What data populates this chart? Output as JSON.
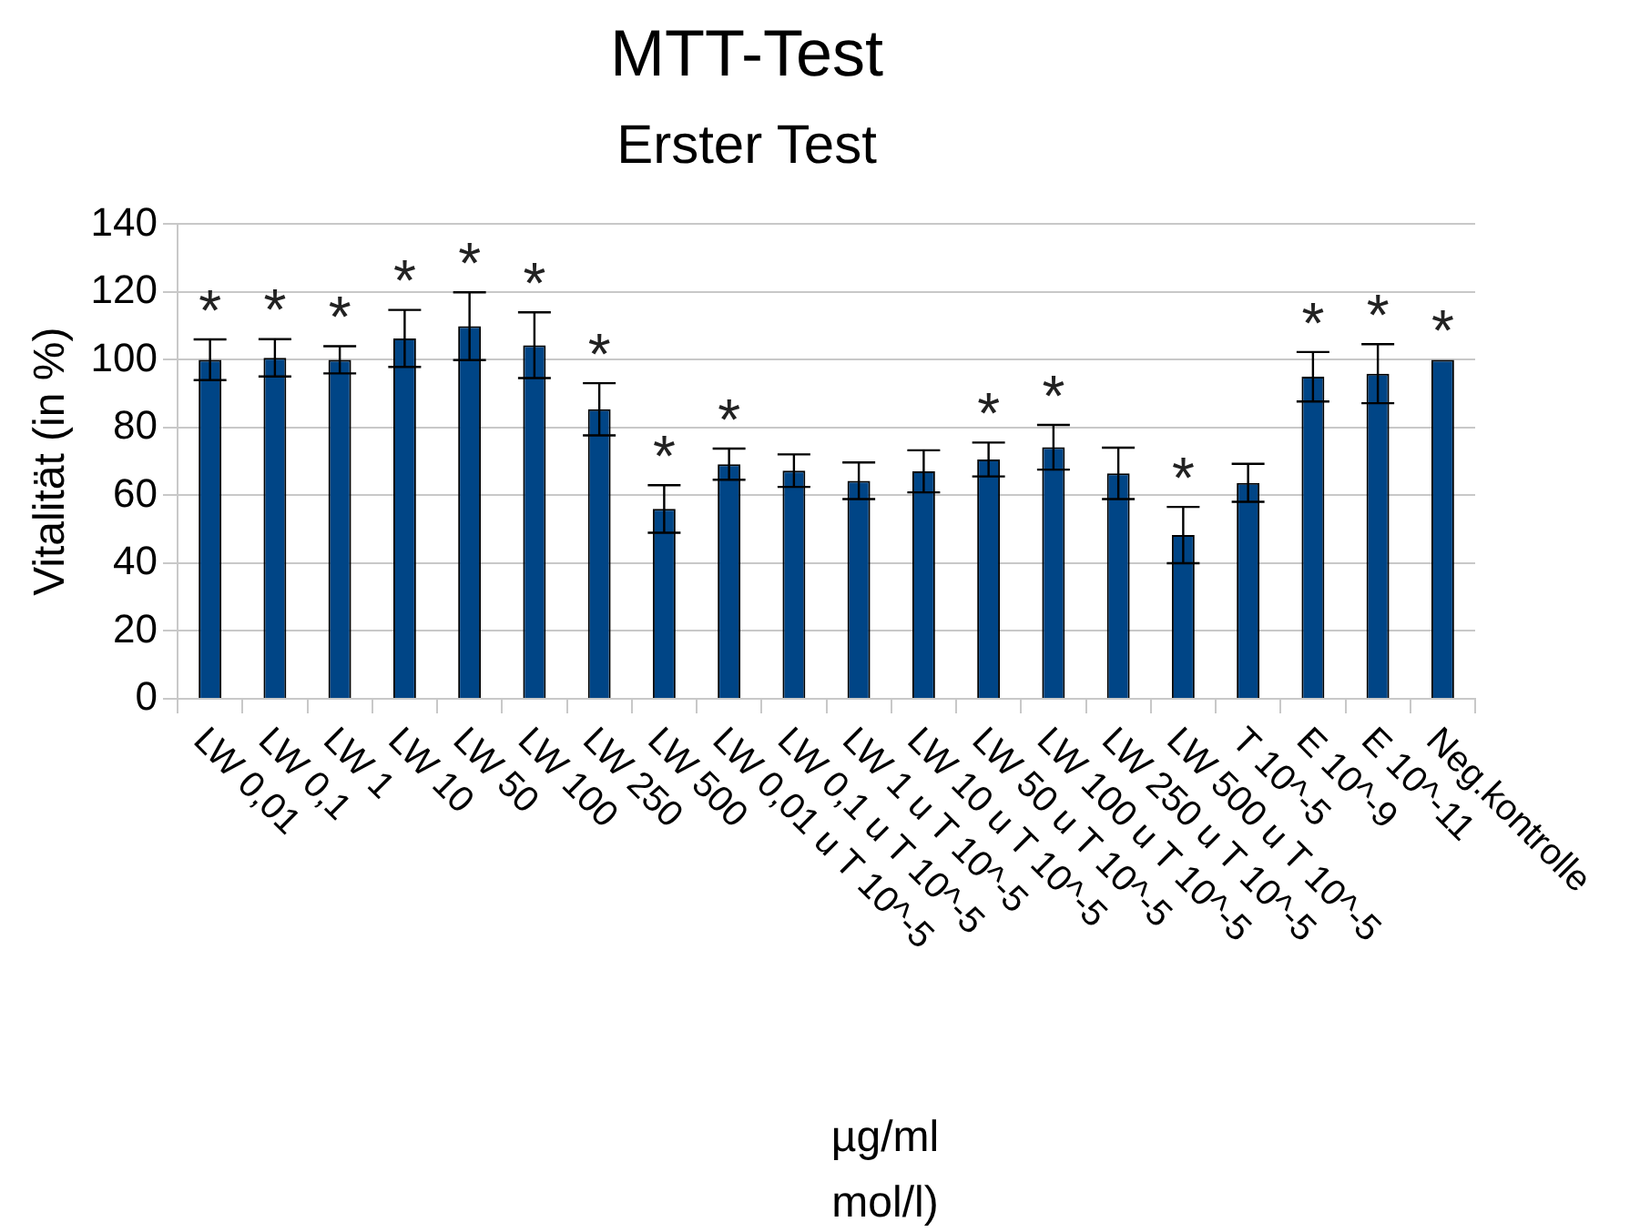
{
  "chart_data": {
    "type": "bar",
    "title": "MTT-Test",
    "subtitle": "Erster Test",
    "ylabel": "Vitalität (in %)",
    "xlabel": "µg/ml\nmol/l)",
    "categories": [
      "LW 0,01",
      "LW 0,1",
      "LW 1",
      "LW 10",
      "LW 50",
      "LW 100",
      "LW 250",
      "LW 500",
      "LW 0,01 u T 10^-5",
      "LW 0,1 u T 10^-5",
      "LW 1 u T 10^-5",
      "LW 10 u T 10^-5",
      "LW 50 u T 10^-5",
      "LW 100 u T 10^-5",
      "LW 250 u T 10^-5",
      "LW 500 u T 10^-5",
      "T 10^-5",
      "E 10^-9",
      "E 10^-11",
      "Neg.kontrolle"
    ],
    "values": [
      100,
      100.6,
      100,
      106.3,
      109.9,
      104.3,
      85.4,
      56,
      69.2,
      67.3,
      64.3,
      67.1,
      70.6,
      74.2,
      66.5,
      48.3,
      63.7,
      95,
      95.9,
      100
    ],
    "errors": [
      6,
      5.5,
      4,
      8.4,
      10,
      9.7,
      7.7,
      7,
      4.6,
      4.8,
      5.4,
      6.2,
      5,
      6.6,
      7.6,
      8.3,
      5.6,
      7.3,
      8.7,
      null
    ],
    "color": "#004586",
    "ylim": [
      0,
      140
    ],
    "yticks": [
      0,
      20,
      40,
      60,
      80,
      100,
      120,
      140
    ],
    "grid": "y",
    "legend": false,
    "annotations": [
      {
        "text": "*",
        "x": "LW 0,01",
        "y": 100
      },
      {
        "text": "*",
        "x": "LW 0,1",
        "y": 100.6
      },
      {
        "text": "*",
        "x": "LW 1",
        "y": 100
      },
      {
        "text": "*",
        "x": "LW 10",
        "y": 106.3
      },
      {
        "text": "*",
        "x": "LW 50",
        "y": 109.9
      },
      {
        "text": "*",
        "x": "LW 100",
        "y": 104.3
      },
      {
        "text": "*",
        "x": "LW 250",
        "y": 85.4
      },
      {
        "text": "*",
        "x": "LW 500",
        "y": 56
      },
      {
        "text": "*",
        "x": "LW 0,01 u T 10^-5",
        "y": 69.2
      },
      {
        "text": "*",
        "x": "LW 50 u T 10^-5",
        "y": 70.6
      },
      {
        "text": "*",
        "x": "LW 100 u T 10^-5",
        "y": 74.2
      },
      {
        "text": "*",
        "x": "LW 500 u T 10^-5",
        "y": 48.3
      },
      {
        "text": "*",
        "x": "E 10^-9",
        "y": 95
      },
      {
        "text": "*",
        "x": "E 10^-11",
        "y": 95.9
      },
      {
        "text": "*",
        "x": "Neg.kontrolle",
        "y": 100
      }
    ]
  }
}
